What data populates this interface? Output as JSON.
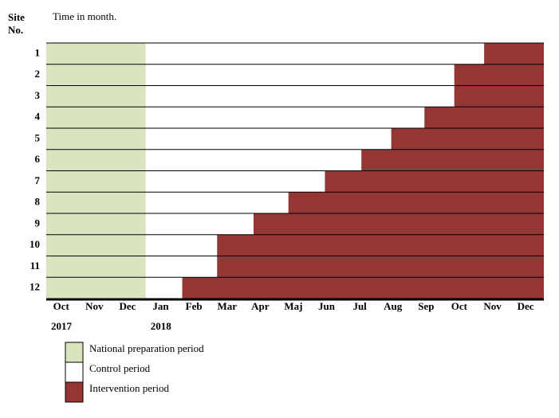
{
  "chart_data": {
    "type": "gantt",
    "title": "Time in month.",
    "y_label": "Site No.",
    "sites": [
      "1",
      "2",
      "3",
      "4",
      "5",
      "6",
      "7",
      "8",
      "9",
      "10",
      "11",
      "12"
    ],
    "categories": [
      "Oct",
      "Nov",
      "Dec",
      "Jan",
      "Feb",
      "Mar",
      "Apr",
      "Maj",
      "Jun",
      "Jul",
      "Aug",
      "Sep",
      "Oct",
      "Nov",
      "Dec"
    ],
    "year_labels": [
      {
        "value": 0,
        "label": "2017"
      },
      {
        "value": 3,
        "label": "2018"
      }
    ],
    "xlim": [
      0,
      15
    ],
    "series": [
      {
        "name": "National preparation period",
        "color": "#d7e4bd",
        "start": [
          0,
          0,
          0,
          0,
          0,
          0,
          0,
          0,
          0,
          0,
          0,
          0
        ],
        "end": [
          3,
          3,
          3,
          3,
          3,
          3,
          3,
          3,
          3,
          3,
          3,
          3
        ]
      },
      {
        "name": "Control period",
        "color": "#ffffff",
        "start": [
          3,
          3,
          3,
          3,
          3,
          3,
          3,
          3,
          3,
          3,
          3,
          3
        ],
        "end": [
          13.2,
          12.3,
          12.3,
          11.4,
          10.4,
          9.5,
          8.4,
          7.3,
          6.25,
          5.15,
          5.15,
          4.1
        ]
      },
      {
        "name": "Intervention period",
        "color": "#943634",
        "start": [
          13.2,
          12.3,
          12.3,
          11.4,
          10.4,
          9.5,
          8.4,
          7.3,
          6.25,
          5.15,
          5.15,
          4.1
        ],
        "end": [
          15,
          15,
          15,
          15,
          15,
          15,
          15,
          15,
          15,
          15,
          15,
          15
        ]
      }
    ]
  }
}
